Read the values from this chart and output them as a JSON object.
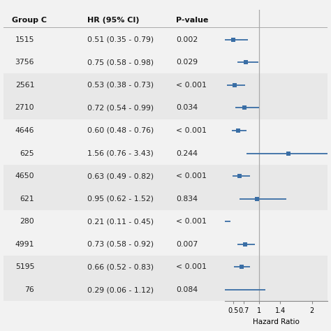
{
  "rows": [
    {
      "group": "1515",
      "hr": 0.51,
      "ci_lo": 0.35,
      "ci_hi": 0.79,
      "pval": "0.002",
      "hr_text": "0.51 (0.35 - 0.79)"
    },
    {
      "group": "3756",
      "hr": 0.75,
      "ci_lo": 0.58,
      "ci_hi": 0.98,
      "pval": "0.029",
      "hr_text": "0.75 (0.58 - 0.98)"
    },
    {
      "group": "2561",
      "hr": 0.53,
      "ci_lo": 0.38,
      "ci_hi": 0.73,
      "pval": "< 0.001",
      "hr_text": "0.53 (0.38 - 0.73)"
    },
    {
      "group": "2710",
      "hr": 0.72,
      "ci_lo": 0.54,
      "ci_hi": 0.99,
      "pval": "0.034",
      "hr_text": "0.72 (0.54 - 0.99)"
    },
    {
      "group": "4646",
      "hr": 0.6,
      "ci_lo": 0.48,
      "ci_hi": 0.76,
      "pval": "< 0.001",
      "hr_text": "0.60 (0.48 - 0.76)"
    },
    {
      "group": "625",
      "hr": 1.56,
      "ci_lo": 0.76,
      "ci_hi": 3.43,
      "pval": "0.244",
      "hr_text": "1.56 (0.76 - 3.43)"
    },
    {
      "group": "4650",
      "hr": 0.63,
      "ci_lo": 0.49,
      "ci_hi": 0.82,
      "pval": "< 0.001",
      "hr_text": "0.63 (0.49 - 0.82)"
    },
    {
      "group": "621",
      "hr": 0.95,
      "ci_lo": 0.62,
      "ci_hi": 1.52,
      "pval": "0.834",
      "hr_text": "0.95 (0.62 - 1.52)"
    },
    {
      "group": "280",
      "hr": 0.21,
      "ci_lo": 0.11,
      "ci_hi": 0.45,
      "pval": "< 0.001",
      "hr_text": "0.21 (0.11 - 0.45)"
    },
    {
      "group": "4991",
      "hr": 0.73,
      "ci_lo": 0.58,
      "ci_hi": 0.92,
      "pval": "0.007",
      "hr_text": "0.73 (0.58 - 0.92)"
    },
    {
      "group": "5195",
      "hr": 0.66,
      "ci_lo": 0.52,
      "ci_hi": 0.83,
      "pval": "< 0.001",
      "hr_text": "0.66 (0.52 - 0.83)"
    },
    {
      "group": "76",
      "hr": 0.29,
      "ci_lo": 0.06,
      "ci_hi": 1.12,
      "pval": "0.084",
      "hr_text": "0.29 (0.06 - 1.12)"
    }
  ],
  "shaded_bands": [
    2,
    3,
    6,
    7,
    10,
    11
  ],
  "col_header": [
    "Group C",
    "HR (95% CI)",
    "P-value"
  ],
  "xmin": 0.35,
  "xmax": 2.3,
  "xticks": [
    0.5,
    0.7,
    1.0,
    1.4,
    2.0
  ],
  "xlabel": "Hazard Ratio",
  "marker_color": "#3A6EA5",
  "line_color": "#3A6EA5",
  "shade_color": "#E8E8E8",
  "bg_color": "#F2F2F2",
  "vline_color": "#AAAAAA",
  "text_color": "#222222",
  "header_color": "#111111"
}
